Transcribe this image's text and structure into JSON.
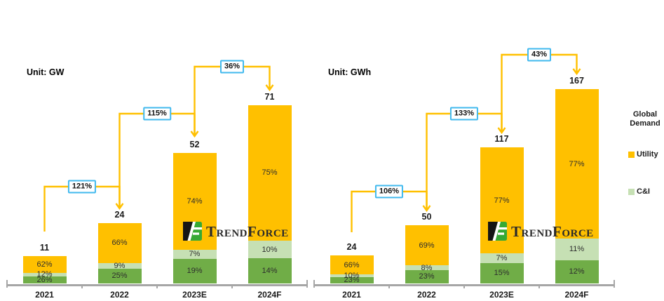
{
  "colors": {
    "utility_orange": "#FFC000",
    "ci_light_green": "#C6E0B4",
    "dark_green": "#70AD47",
    "arrow_yellow": "#FFC000",
    "growth_box_border_blue": "#41B9EE",
    "axis_gray": "#A6A6A6"
  },
  "legend": {
    "title_line1": "Global",
    "title_line2": "Demand",
    "items": [
      {
        "label": "Utility",
        "color": "#FFC000"
      },
      {
        "label": "C&I",
        "color": "#C6E0B4"
      }
    ]
  },
  "watermark": {
    "brand": "TrendForce"
  },
  "chart_data": [
    {
      "type": "bar",
      "stacked": true,
      "unit_label": "Unit: GW",
      "categories": [
        "2021",
        "2022",
        "2023E",
        "2024F"
      ],
      "totals": [
        11,
        24,
        52,
        71
      ],
      "growth_pct": [
        "121%",
        "115%",
        "36%"
      ],
      "series": [
        {
          "key": "dark-green",
          "name": "",
          "color": "#70AD47",
          "pct": [
            26,
            25,
            19,
            14
          ]
        },
        {
          "key": "ci",
          "name": "C&I",
          "color": "#C6E0B4",
          "pct": [
            12,
            9,
            7,
            10
          ]
        },
        {
          "key": "utility",
          "name": "Utility",
          "color": "#FFC000",
          "pct": [
            62,
            66,
            74,
            75
          ]
        }
      ]
    },
    {
      "type": "bar",
      "stacked": true,
      "unit_label": "Unit: GWh",
      "categories": [
        "2021",
        "2022",
        "2023E",
        "2024F"
      ],
      "totals": [
        24,
        50,
        117,
        167
      ],
      "growth_pct": [
        "106%",
        "133%",
        "43%"
      ],
      "series": [
        {
          "key": "dark-green",
          "name": "",
          "color": "#70AD47",
          "pct": [
            23,
            23,
            15,
            12
          ]
        },
        {
          "key": "ci",
          "name": "C&I",
          "color": "#C6E0B4",
          "pct": [
            10,
            8,
            7,
            11
          ]
        },
        {
          "key": "utility",
          "name": "Utility",
          "color": "#FFC000",
          "pct": [
            66,
            69,
            77,
            77
          ]
        }
      ]
    }
  ]
}
